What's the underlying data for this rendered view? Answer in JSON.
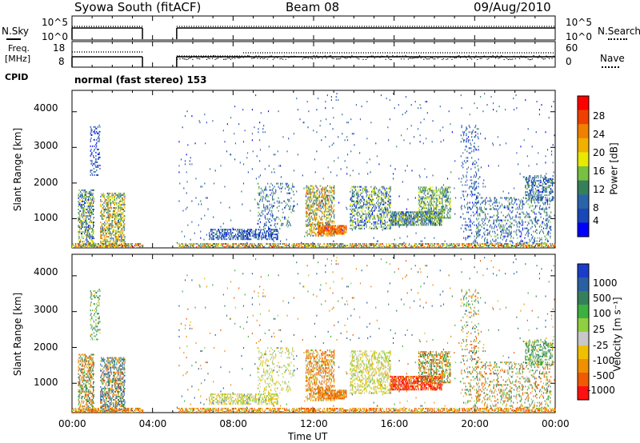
{
  "header": {
    "station": "Syowa South (fitACF)",
    "beam": "Beam 08",
    "date": "09/Aug/2010"
  },
  "panel_nsky": {
    "left_label": "N.Sky",
    "left_ticks": [
      "10^5",
      "10^0"
    ],
    "right_ticks": [
      "10^5",
      "10^0"
    ],
    "right_label": "N.Search",
    "legend_style": "dotted"
  },
  "panel_freq": {
    "left_label_top": "Freq.",
    "left_label_unit": "[MHz]",
    "left_ticks": [
      "18",
      "8"
    ],
    "right_ticks": [
      "60",
      "0"
    ],
    "right_label": "Nave",
    "legend_style": "dotted"
  },
  "cpid": {
    "label": "CPID",
    "value": "normal (fast stereo) 153"
  },
  "power_plot": {
    "ylabel": "Slant Range [km]",
    "yticks": [
      "4000",
      "3000",
      "2000",
      "1000"
    ],
    "colorbar_label": "Power [dB]",
    "colorbar_ticks": [
      "28",
      "24",
      "20",
      "16",
      "12",
      "8",
      "4"
    ],
    "colors": [
      "#0000ff",
      "#1848b8",
      "#2a64a8",
      "#35805a",
      "#78c040",
      "#e8e800",
      "#f0b000",
      "#f08000",
      "#f04000",
      "#ff0000"
    ]
  },
  "velocity_plot": {
    "ylabel": "Slant Range [km]",
    "yticks": [
      "4000",
      "3000",
      "2000",
      "1000"
    ],
    "colorbar_label": "Velocity [m s⁻¹]",
    "colorbar_ticks": [
      "1000",
      "500",
      "100",
      "25",
      "-25",
      "-100",
      "-500",
      "-1000"
    ],
    "colors": [
      "#1a3cc8",
      "#2a60a0",
      "#35805a",
      "#3cb040",
      "#90d040",
      "#c8c8c8",
      "#f0c000",
      "#f09000",
      "#f05a00",
      "#ff1010"
    ]
  },
  "xaxis": {
    "label": "Time UT",
    "ticks": [
      "00:00",
      "04:00",
      "08:00",
      "12:00",
      "16:00",
      "20:00",
      "00:00"
    ]
  },
  "chart_data": {
    "type": "heatmap",
    "x_unit": "hours UT",
    "xlim": [
      0,
      24
    ],
    "ylim": [
      180,
      4600
    ],
    "data_gap": [
      3.5,
      5.2
    ],
    "clusters": [
      {
        "x": [
          0.3,
          1.1
        ],
        "y": [
          200,
          1800
        ],
        "density": 0.45,
        "power": [
          4,
          22
        ],
        "velocity": [
          -500,
          500
        ]
      },
      {
        "x": [
          0.9,
          1.4
        ],
        "y": [
          2200,
          3600
        ],
        "density": 0.2,
        "power": [
          4,
          10
        ],
        "velocity": [
          -100,
          500
        ]
      },
      {
        "x": [
          1.4,
          2.6
        ],
        "y": [
          200,
          1700
        ],
        "density": 0.45,
        "power": [
          8,
          26
        ],
        "velocity": [
          -500,
          1000
        ]
      },
      {
        "x": [
          6.8,
          10.2
        ],
        "y": [
          400,
          700
        ],
        "density": 0.45,
        "power": [
          4,
          12
        ],
        "velocity": [
          -100,
          100
        ]
      },
      {
        "x": [
          9.2,
          11.0
        ],
        "y": [
          700,
          2000
        ],
        "density": 0.15,
        "power": [
          4,
          16
        ],
        "velocity": [
          -100,
          100
        ]
      },
      {
        "x": [
          11.6,
          13.0
        ],
        "y": [
          500,
          1900
        ],
        "density": 0.4,
        "power": [
          8,
          28
        ],
        "velocity": [
          -500,
          100
        ]
      },
      {
        "x": [
          12.2,
          13.6
        ],
        "y": [
          550,
          800
        ],
        "density": 0.8,
        "power": [
          20,
          30
        ],
        "velocity": [
          -500,
          25
        ]
      },
      {
        "x": [
          13.8,
          15.8
        ],
        "y": [
          700,
          1900
        ],
        "density": 0.35,
        "power": [
          4,
          20
        ],
        "velocity": [
          -100,
          100
        ]
      },
      {
        "x": [
          15.8,
          18.4
        ],
        "y": [
          800,
          1200
        ],
        "density": 0.6,
        "power": [
          4,
          20
        ],
        "velocity": [
          -1000,
          -100
        ]
      },
      {
        "x": [
          17.2,
          18.8
        ],
        "y": [
          1000,
          1900
        ],
        "density": 0.35,
        "power": [
          8,
          20
        ],
        "velocity": [
          -500,
          500
        ]
      },
      {
        "x": [
          19.3,
          20.2
        ],
        "y": [
          300,
          3600
        ],
        "density": 0.12,
        "power": [
          4,
          12
        ],
        "velocity": [
          -500,
          500
        ]
      },
      {
        "x": [
          20.0,
          23.8
        ],
        "y": [
          300,
          1600
        ],
        "density": 0.18,
        "power": [
          4,
          16
        ],
        "velocity": [
          -500,
          500
        ]
      },
      {
        "x": [
          22.5,
          23.9
        ],
        "y": [
          1500,
          2200
        ],
        "density": 0.35,
        "power": [
          4,
          16
        ],
        "velocity": [
          -100,
          500
        ]
      },
      {
        "x": [
          0.0,
          24.0
        ],
        "y": [
          180,
          300
        ],
        "density": 0.5,
        "power": [
          8,
          30
        ],
        "velocity": [
          -500,
          100
        ]
      },
      {
        "x": [
          5.2,
          24.0
        ],
        "y": [
          300,
          4500
        ],
        "density": 0.01,
        "power": [
          4,
          12
        ],
        "velocity": [
          -500,
          1000
        ]
      }
    ],
    "nsky": {
      "x": [
        0,
        3.5,
        5.2,
        14.5,
        19.5,
        24
      ],
      "y_level": "high",
      "gap": [
        3.5,
        5.2
      ]
    },
    "freq": {
      "x": [
        0,
        3.5,
        5.2,
        8.5,
        24
      ],
      "y": [
        12,
        12,
        10,
        13,
        13
      ],
      "unit": "MHz"
    }
  }
}
